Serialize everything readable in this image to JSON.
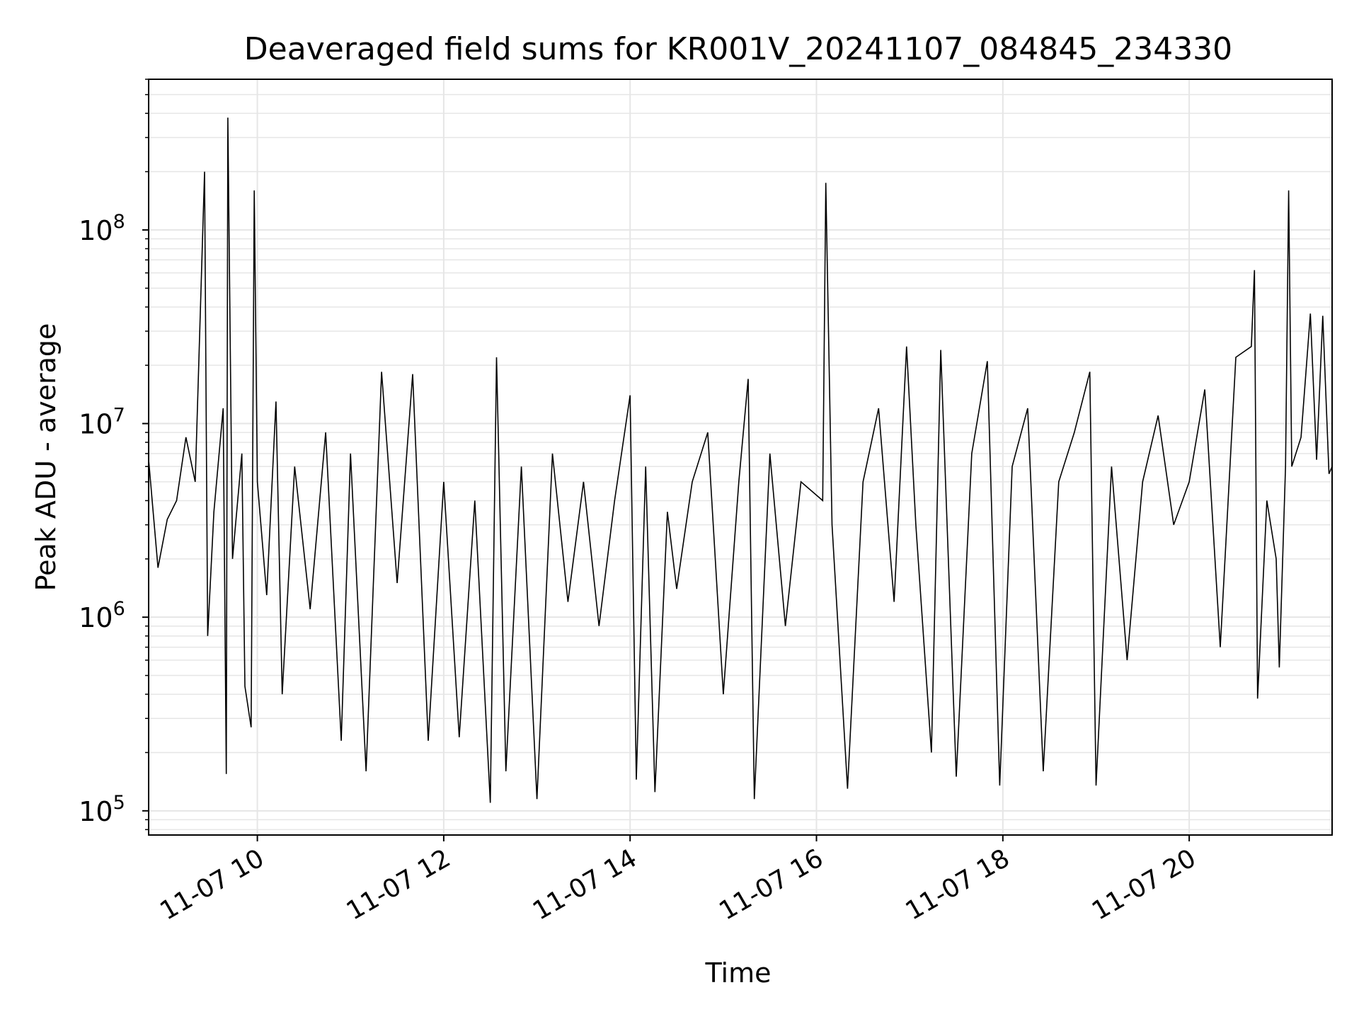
{
  "chart_data": {
    "type": "line",
    "title": "Deaveraged field sums for KR001V_20241107_084845_234330",
    "xlabel": "Time",
    "ylabel": "Peak ADU - average",
    "x_range": [
      "2024-11-07T08:50",
      "2024-11-07T21:32"
    ],
    "y_range": [
      75000,
      600000000
    ],
    "y_scale": "log",
    "grid": true,
    "line_color": "#000000",
    "grid_color": "#e6e6e6",
    "x_ticks": [
      {
        "value": "2024-11-07T10:00",
        "label": "11-07 10"
      },
      {
        "value": "2024-11-07T12:00",
        "label": "11-07 12"
      },
      {
        "value": "2024-11-07T14:00",
        "label": "11-07 14"
      },
      {
        "value": "2024-11-07T16:00",
        "label": "11-07 16"
      },
      {
        "value": "2024-11-07T18:00",
        "label": "11-07 18"
      },
      {
        "value": "2024-11-07T20:00",
        "label": "11-07 20"
      }
    ],
    "y_ticks": [
      {
        "value": 100000,
        "base": "10",
        "exp": "5"
      },
      {
        "value": 1000000,
        "base": "10",
        "exp": "6"
      },
      {
        "value": 10000000,
        "base": "10",
        "exp": "7"
      },
      {
        "value": 100000000,
        "base": "10",
        "exp": "8"
      }
    ],
    "series": [
      {
        "points": [
          [
            "2024-11-07T08:50",
            6500000
          ],
          [
            "2024-11-07T08:56",
            1800000
          ],
          [
            "2024-11-07T09:02",
            3200000
          ],
          [
            "2024-11-07T09:08",
            4000000
          ],
          [
            "2024-11-07T09:14",
            8500000
          ],
          [
            "2024-11-07T09:20",
            5000000
          ],
          [
            "2024-11-07T09:26",
            200000000
          ],
          [
            "2024-11-07T09:28",
            800000
          ],
          [
            "2024-11-07T09:32",
            3500000
          ],
          [
            "2024-11-07T09:38",
            12000000
          ],
          [
            "2024-11-07T09:40",
            155000
          ],
          [
            "2024-11-07T09:41",
            380000000
          ],
          [
            "2024-11-07T09:44",
            2000000
          ],
          [
            "2024-11-07T09:50",
            7000000
          ],
          [
            "2024-11-07T09:52",
            440000
          ],
          [
            "2024-11-07T09:56",
            270000
          ],
          [
            "2024-11-07T09:58",
            160000000
          ],
          [
            "2024-11-07T10:00",
            5000000
          ],
          [
            "2024-11-07T10:06",
            1300000
          ],
          [
            "2024-11-07T10:12",
            13000000
          ],
          [
            "2024-11-07T10:16",
            400000
          ],
          [
            "2024-11-07T10:24",
            6000000
          ],
          [
            "2024-11-07T10:34",
            1100000
          ],
          [
            "2024-11-07T10:44",
            9000000
          ],
          [
            "2024-11-07T10:54",
            230000
          ],
          [
            "2024-11-07T11:00",
            7000000
          ],
          [
            "2024-11-07T11:10",
            160000
          ],
          [
            "2024-11-07T11:20",
            18500000
          ],
          [
            "2024-11-07T11:30",
            1500000
          ],
          [
            "2024-11-07T11:40",
            18000000
          ],
          [
            "2024-11-07T11:50",
            230000
          ],
          [
            "2024-11-07T12:00",
            5000000
          ],
          [
            "2024-11-07T12:10",
            240000
          ],
          [
            "2024-11-07T12:20",
            4000000
          ],
          [
            "2024-11-07T12:30",
            110000
          ],
          [
            "2024-11-07T12:34",
            22000000
          ],
          [
            "2024-11-07T12:40",
            160000
          ],
          [
            "2024-11-07T12:50",
            6000000
          ],
          [
            "2024-11-07T13:00",
            115000
          ],
          [
            "2024-11-07T13:10",
            7000000
          ],
          [
            "2024-11-07T13:20",
            1200000
          ],
          [
            "2024-11-07T13:30",
            5000000
          ],
          [
            "2024-11-07T13:40",
            900000
          ],
          [
            "2024-11-07T13:50",
            4000000
          ],
          [
            "2024-11-07T14:00",
            14000000
          ],
          [
            "2024-11-07T14:04",
            145000
          ],
          [
            "2024-11-07T14:10",
            6000000
          ],
          [
            "2024-11-07T14:16",
            125000
          ],
          [
            "2024-11-07T14:24",
            3500000
          ],
          [
            "2024-11-07T14:30",
            1400000
          ],
          [
            "2024-11-07T14:40",
            5000000
          ],
          [
            "2024-11-07T14:50",
            9000000
          ],
          [
            "2024-11-07T15:00",
            400000
          ],
          [
            "2024-11-07T15:10",
            5000000
          ],
          [
            "2024-11-07T15:16",
            17000000
          ],
          [
            "2024-11-07T15:20",
            115000
          ],
          [
            "2024-11-07T15:30",
            7000000
          ],
          [
            "2024-11-07T15:40",
            900000
          ],
          [
            "2024-11-07T15:50",
            5000000
          ],
          [
            "2024-11-07T16:04",
            4000000
          ],
          [
            "2024-11-07T16:06",
            175000000
          ],
          [
            "2024-11-07T16:10",
            3000000
          ],
          [
            "2024-11-07T16:20",
            130000
          ],
          [
            "2024-11-07T16:30",
            5000000
          ],
          [
            "2024-11-07T16:40",
            12000000
          ],
          [
            "2024-11-07T16:50",
            1200000
          ],
          [
            "2024-11-07T16:58",
            25000000
          ],
          [
            "2024-11-07T17:04",
            3000000
          ],
          [
            "2024-11-07T17:14",
            200000
          ],
          [
            "2024-11-07T17:20",
            24000000
          ],
          [
            "2024-11-07T17:30",
            150000
          ],
          [
            "2024-11-07T17:40",
            7000000
          ],
          [
            "2024-11-07T17:50",
            21000000
          ],
          [
            "2024-11-07T17:58",
            135000
          ],
          [
            "2024-11-07T18:06",
            6000000
          ],
          [
            "2024-11-07T18:16",
            12000000
          ],
          [
            "2024-11-07T18:26",
            160000
          ],
          [
            "2024-11-07T18:36",
            5000000
          ],
          [
            "2024-11-07T18:46",
            9000000
          ],
          [
            "2024-11-07T18:56",
            18500000
          ],
          [
            "2024-11-07T19:00",
            135000
          ],
          [
            "2024-11-07T19:10",
            6000000
          ],
          [
            "2024-11-07T19:20",
            600000
          ],
          [
            "2024-11-07T19:30",
            5000000
          ],
          [
            "2024-11-07T19:40",
            11000000
          ],
          [
            "2024-11-07T19:50",
            3000000
          ],
          [
            "2024-11-07T20:00",
            5000000
          ],
          [
            "2024-11-07T20:10",
            15000000
          ],
          [
            "2024-11-07T20:20",
            700000
          ],
          [
            "2024-11-07T20:30",
            22000000
          ],
          [
            "2024-11-07T20:40",
            25000000
          ],
          [
            "2024-11-07T20:42",
            62000000
          ],
          [
            "2024-11-07T20:44",
            380000
          ],
          [
            "2024-11-07T20:50",
            4000000
          ],
          [
            "2024-11-07T20:56",
            2000000
          ],
          [
            "2024-11-07T20:58",
            550000
          ],
          [
            "2024-11-07T21:02",
            6000000
          ],
          [
            "2024-11-07T21:04",
            160000000
          ],
          [
            "2024-11-07T21:06",
            6000000
          ],
          [
            "2024-11-07T21:12",
            8500000
          ],
          [
            "2024-11-07T21:18",
            37000000
          ],
          [
            "2024-11-07T21:22",
            6500000
          ],
          [
            "2024-11-07T21:26",
            36000000
          ],
          [
            "2024-11-07T21:30",
            5500000
          ],
          [
            "2024-11-07T21:32",
            6000000
          ]
        ]
      }
    ]
  }
}
